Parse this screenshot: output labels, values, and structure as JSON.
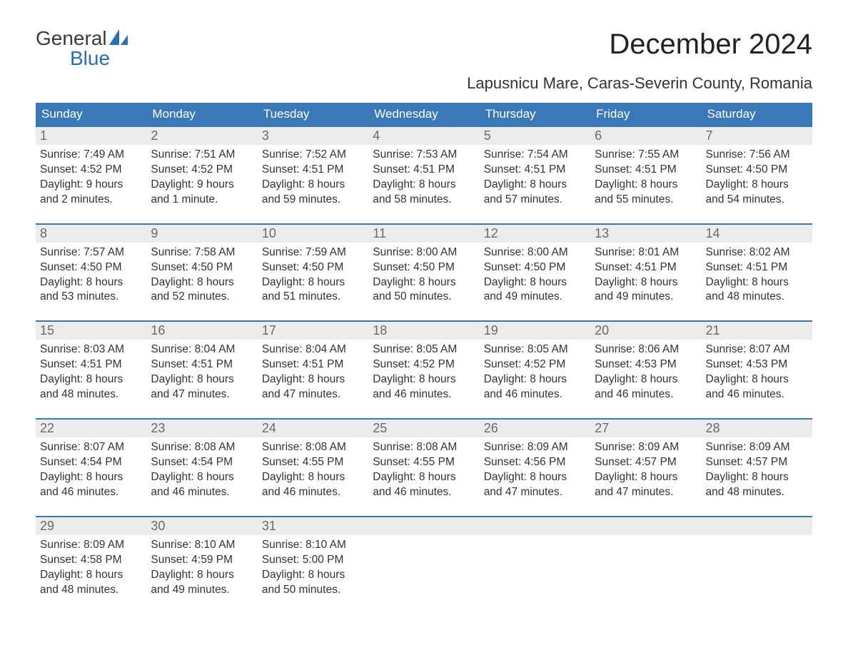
{
  "logo": {
    "top": "General",
    "bottom": "Blue"
  },
  "title": "December 2024",
  "subtitle": "Lapusnicu Mare, Caras-Severin County, Romania",
  "colors": {
    "header_bg": "#3a78b8",
    "header_text": "#ffffff",
    "daynum_bg": "#ececec",
    "daynum_text": "#6a6a6a",
    "body_text": "#333333",
    "accent": "#2a6db8",
    "week_border": "#3a78b8",
    "page_bg": "#ffffff"
  },
  "weekday_labels": [
    "Sunday",
    "Monday",
    "Tuesday",
    "Wednesday",
    "Thursday",
    "Friday",
    "Saturday"
  ],
  "weeks": [
    [
      {
        "n": "1",
        "sunrise": "Sunrise: 7:49 AM",
        "sunset": "Sunset: 4:52 PM",
        "d1": "Daylight: 9 hours",
        "d2": "and 2 minutes."
      },
      {
        "n": "2",
        "sunrise": "Sunrise: 7:51 AM",
        "sunset": "Sunset: 4:52 PM",
        "d1": "Daylight: 9 hours",
        "d2": "and 1 minute."
      },
      {
        "n": "3",
        "sunrise": "Sunrise: 7:52 AM",
        "sunset": "Sunset: 4:51 PM",
        "d1": "Daylight: 8 hours",
        "d2": "and 59 minutes."
      },
      {
        "n": "4",
        "sunrise": "Sunrise: 7:53 AM",
        "sunset": "Sunset: 4:51 PM",
        "d1": "Daylight: 8 hours",
        "d2": "and 58 minutes."
      },
      {
        "n": "5",
        "sunrise": "Sunrise: 7:54 AM",
        "sunset": "Sunset: 4:51 PM",
        "d1": "Daylight: 8 hours",
        "d2": "and 57 minutes."
      },
      {
        "n": "6",
        "sunrise": "Sunrise: 7:55 AM",
        "sunset": "Sunset: 4:51 PM",
        "d1": "Daylight: 8 hours",
        "d2": "and 55 minutes."
      },
      {
        "n": "7",
        "sunrise": "Sunrise: 7:56 AM",
        "sunset": "Sunset: 4:50 PM",
        "d1": "Daylight: 8 hours",
        "d2": "and 54 minutes."
      }
    ],
    [
      {
        "n": "8",
        "sunrise": "Sunrise: 7:57 AM",
        "sunset": "Sunset: 4:50 PM",
        "d1": "Daylight: 8 hours",
        "d2": "and 53 minutes."
      },
      {
        "n": "9",
        "sunrise": "Sunrise: 7:58 AM",
        "sunset": "Sunset: 4:50 PM",
        "d1": "Daylight: 8 hours",
        "d2": "and 52 minutes."
      },
      {
        "n": "10",
        "sunrise": "Sunrise: 7:59 AM",
        "sunset": "Sunset: 4:50 PM",
        "d1": "Daylight: 8 hours",
        "d2": "and 51 minutes."
      },
      {
        "n": "11",
        "sunrise": "Sunrise: 8:00 AM",
        "sunset": "Sunset: 4:50 PM",
        "d1": "Daylight: 8 hours",
        "d2": "and 50 minutes."
      },
      {
        "n": "12",
        "sunrise": "Sunrise: 8:00 AM",
        "sunset": "Sunset: 4:50 PM",
        "d1": "Daylight: 8 hours",
        "d2": "and 49 minutes."
      },
      {
        "n": "13",
        "sunrise": "Sunrise: 8:01 AM",
        "sunset": "Sunset: 4:51 PM",
        "d1": "Daylight: 8 hours",
        "d2": "and 49 minutes."
      },
      {
        "n": "14",
        "sunrise": "Sunrise: 8:02 AM",
        "sunset": "Sunset: 4:51 PM",
        "d1": "Daylight: 8 hours",
        "d2": "and 48 minutes."
      }
    ],
    [
      {
        "n": "15",
        "sunrise": "Sunrise: 8:03 AM",
        "sunset": "Sunset: 4:51 PM",
        "d1": "Daylight: 8 hours",
        "d2": "and 48 minutes."
      },
      {
        "n": "16",
        "sunrise": "Sunrise: 8:04 AM",
        "sunset": "Sunset: 4:51 PM",
        "d1": "Daylight: 8 hours",
        "d2": "and 47 minutes."
      },
      {
        "n": "17",
        "sunrise": "Sunrise: 8:04 AM",
        "sunset": "Sunset: 4:51 PM",
        "d1": "Daylight: 8 hours",
        "d2": "and 47 minutes."
      },
      {
        "n": "18",
        "sunrise": "Sunrise: 8:05 AM",
        "sunset": "Sunset: 4:52 PM",
        "d1": "Daylight: 8 hours",
        "d2": "and 46 minutes."
      },
      {
        "n": "19",
        "sunrise": "Sunrise: 8:05 AM",
        "sunset": "Sunset: 4:52 PM",
        "d1": "Daylight: 8 hours",
        "d2": "and 46 minutes."
      },
      {
        "n": "20",
        "sunrise": "Sunrise: 8:06 AM",
        "sunset": "Sunset: 4:53 PM",
        "d1": "Daylight: 8 hours",
        "d2": "and 46 minutes."
      },
      {
        "n": "21",
        "sunrise": "Sunrise: 8:07 AM",
        "sunset": "Sunset: 4:53 PM",
        "d1": "Daylight: 8 hours",
        "d2": "and 46 minutes."
      }
    ],
    [
      {
        "n": "22",
        "sunrise": "Sunrise: 8:07 AM",
        "sunset": "Sunset: 4:54 PM",
        "d1": "Daylight: 8 hours",
        "d2": "and 46 minutes."
      },
      {
        "n": "23",
        "sunrise": "Sunrise: 8:08 AM",
        "sunset": "Sunset: 4:54 PM",
        "d1": "Daylight: 8 hours",
        "d2": "and 46 minutes."
      },
      {
        "n": "24",
        "sunrise": "Sunrise: 8:08 AM",
        "sunset": "Sunset: 4:55 PM",
        "d1": "Daylight: 8 hours",
        "d2": "and 46 minutes."
      },
      {
        "n": "25",
        "sunrise": "Sunrise: 8:08 AM",
        "sunset": "Sunset: 4:55 PM",
        "d1": "Daylight: 8 hours",
        "d2": "and 46 minutes."
      },
      {
        "n": "26",
        "sunrise": "Sunrise: 8:09 AM",
        "sunset": "Sunset: 4:56 PM",
        "d1": "Daylight: 8 hours",
        "d2": "and 47 minutes."
      },
      {
        "n": "27",
        "sunrise": "Sunrise: 8:09 AM",
        "sunset": "Sunset: 4:57 PM",
        "d1": "Daylight: 8 hours",
        "d2": "and 47 minutes."
      },
      {
        "n": "28",
        "sunrise": "Sunrise: 8:09 AM",
        "sunset": "Sunset: 4:57 PM",
        "d1": "Daylight: 8 hours",
        "d2": "and 48 minutes."
      }
    ],
    [
      {
        "n": "29",
        "sunrise": "Sunrise: 8:09 AM",
        "sunset": "Sunset: 4:58 PM",
        "d1": "Daylight: 8 hours",
        "d2": "and 48 minutes."
      },
      {
        "n": "30",
        "sunrise": "Sunrise: 8:10 AM",
        "sunset": "Sunset: 4:59 PM",
        "d1": "Daylight: 8 hours",
        "d2": "and 49 minutes."
      },
      {
        "n": "31",
        "sunrise": "Sunrise: 8:10 AM",
        "sunset": "Sunset: 5:00 PM",
        "d1": "Daylight: 8 hours",
        "d2": "and 50 minutes."
      },
      {
        "n": "",
        "sunrise": "",
        "sunset": "",
        "d1": "",
        "d2": ""
      },
      {
        "n": "",
        "sunrise": "",
        "sunset": "",
        "d1": "",
        "d2": ""
      },
      {
        "n": "",
        "sunrise": "",
        "sunset": "",
        "d1": "",
        "d2": ""
      },
      {
        "n": "",
        "sunrise": "",
        "sunset": "",
        "d1": "",
        "d2": ""
      }
    ]
  ]
}
